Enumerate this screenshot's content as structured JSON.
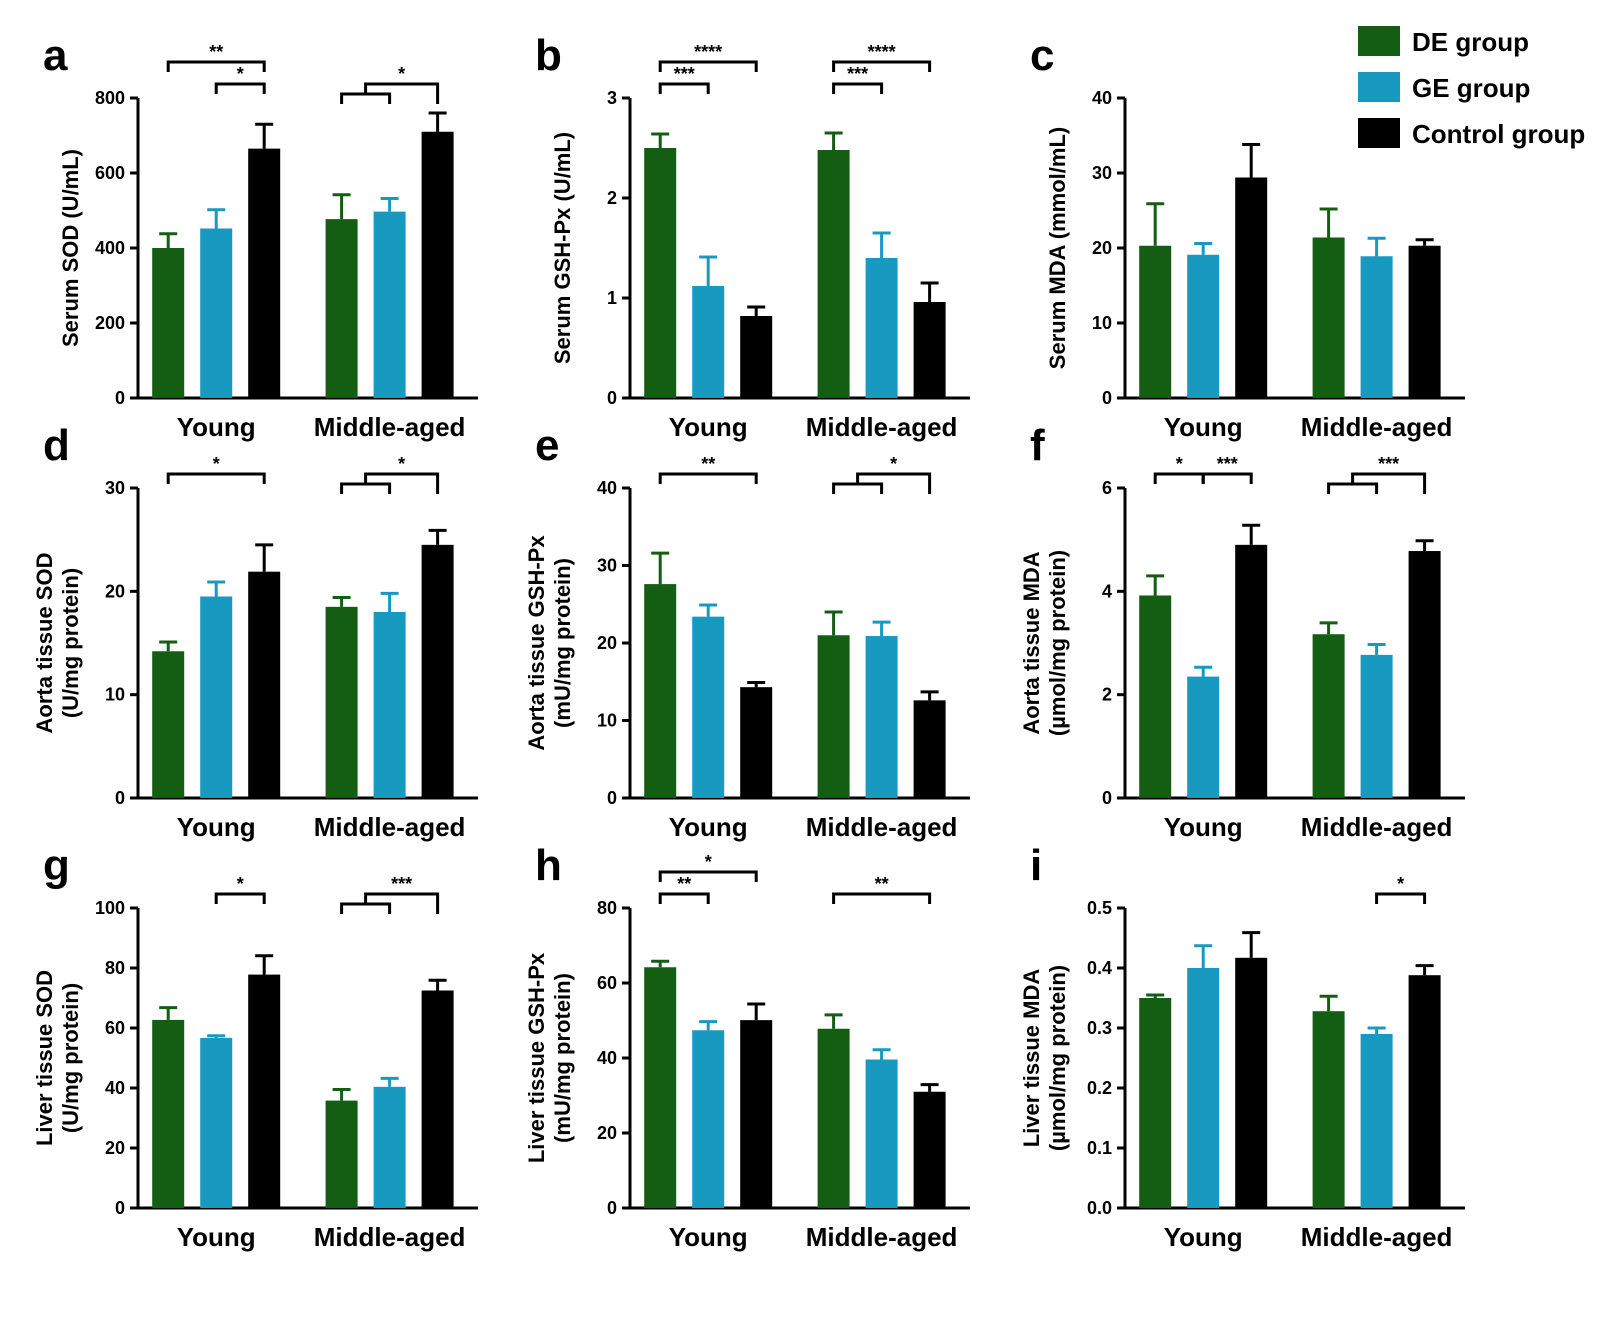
{
  "colors": {
    "DE": "#135e13",
    "GE": "#1899c0",
    "Control": "#000000"
  },
  "legend": {
    "items": [
      {
        "label": "DE group",
        "color": "#135e13"
      },
      {
        "label": "GE group",
        "color": "#1899c0"
      },
      {
        "label": "Control group",
        "color": "#000000"
      }
    ]
  },
  "chart_data": [
    {
      "letter": "a",
      "type": "bar",
      "ylabel": [
        "Serum SOD (U/mL)"
      ],
      "ylim": [
        0,
        800
      ],
      "yticks": [
        0,
        200,
        400,
        600,
        800
      ],
      "categories": [
        "Young",
        "Middle-aged"
      ],
      "series": [
        {
          "name": "DE group",
          "values": [
            400,
            477
          ],
          "errors": [
            38,
            65
          ]
        },
        {
          "name": "GE group",
          "values": [
            452,
            497
          ],
          "errors": [
            50,
            35
          ]
        },
        {
          "name": "Control group",
          "values": [
            665,
            710
          ],
          "errors": [
            65,
            50
          ]
        }
      ],
      "significance": [
        {
          "label": "**",
          "type": "pair",
          "group": 0,
          "from": 0,
          "to": 2,
          "level": 2
        },
        {
          "label": "*",
          "type": "pair",
          "group": 0,
          "from": 1,
          "to": 2,
          "level": 1
        },
        {
          "label": "*",
          "type": "combined",
          "group": 1,
          "level": 1
        }
      ]
    },
    {
      "letter": "b",
      "type": "bar",
      "ylabel": [
        "Serum GSH-Px (U/mL)"
      ],
      "ylim": [
        0,
        3
      ],
      "yticks": [
        0,
        1,
        2,
        3
      ],
      "categories": [
        "Young",
        "Middle-aged"
      ],
      "series": [
        {
          "name": "DE group",
          "values": [
            2.5,
            2.48
          ],
          "errors": [
            0.14,
            0.17
          ]
        },
        {
          "name": "GE group",
          "values": [
            1.12,
            1.4
          ],
          "errors": [
            0.29,
            0.25
          ]
        },
        {
          "name": "Control group",
          "values": [
            0.82,
            0.96
          ],
          "errors": [
            0.09,
            0.19
          ]
        }
      ],
      "significance": [
        {
          "label": "****",
          "type": "pair",
          "group": 0,
          "from": 0,
          "to": 2,
          "level": 2
        },
        {
          "label": "***",
          "type": "pair",
          "group": 0,
          "from": 0,
          "to": 1,
          "level": 1
        },
        {
          "label": "****",
          "type": "pair",
          "group": 1,
          "from": 0,
          "to": 2,
          "level": 2
        },
        {
          "label": "***",
          "type": "pair",
          "group": 1,
          "from": 0,
          "to": 1,
          "level": 1
        }
      ]
    },
    {
      "letter": "c",
      "type": "bar",
      "ylabel": [
        "Serum MDA (mmol/mL)"
      ],
      "ylim": [
        0,
        40
      ],
      "yticks": [
        0,
        10,
        20,
        30,
        40
      ],
      "categories": [
        "Young",
        "Middle-aged"
      ],
      "series": [
        {
          "name": "DE group",
          "values": [
            20.3,
            21.4
          ],
          "errors": [
            5.6,
            3.8
          ]
        },
        {
          "name": "GE group",
          "values": [
            19.1,
            18.9
          ],
          "errors": [
            1.5,
            2.4
          ]
        },
        {
          "name": "Control group",
          "values": [
            29.4,
            20.3
          ],
          "errors": [
            4.4,
            0.8
          ]
        }
      ],
      "significance": []
    },
    {
      "letter": "d",
      "type": "bar",
      "ylabel": [
        "Aorta tissue SOD",
        "(U/mg protein)"
      ],
      "ylim": [
        0,
        30
      ],
      "yticks": [
        0,
        10,
        20,
        30
      ],
      "categories": [
        "Young",
        "Middle-aged"
      ],
      "series": [
        {
          "name": "DE group",
          "values": [
            14.2,
            18.5
          ],
          "errors": [
            0.9,
            0.9
          ]
        },
        {
          "name": "GE group",
          "values": [
            19.5,
            18
          ],
          "errors": [
            1.4,
            1.8
          ]
        },
        {
          "name": "Control group",
          "values": [
            21.9,
            24.5
          ],
          "errors": [
            2.6,
            1.4
          ]
        }
      ],
      "significance": [
        {
          "label": "*",
          "type": "pair",
          "group": 0,
          "from": 0,
          "to": 2,
          "level": 1
        },
        {
          "label": "*",
          "type": "combined",
          "group": 1,
          "level": 1
        }
      ]
    },
    {
      "letter": "e",
      "type": "bar",
      "ylabel": [
        "Aorta tissue GSH-Px",
        "(mU/mg protein)"
      ],
      "ylim": [
        0,
        40
      ],
      "yticks": [
        0,
        10,
        20,
        30,
        40
      ],
      "categories": [
        "Young",
        "Middle-aged"
      ],
      "series": [
        {
          "name": "DE group",
          "values": [
            27.6,
            21
          ],
          "errors": [
            4,
            3
          ]
        },
        {
          "name": "GE group",
          "values": [
            23.4,
            20.9
          ],
          "errors": [
            1.5,
            1.8
          ]
        },
        {
          "name": "Control group",
          "values": [
            14.3,
            12.6
          ],
          "errors": [
            0.6,
            1.1
          ]
        }
      ],
      "significance": [
        {
          "label": "**",
          "type": "pair",
          "group": 0,
          "from": 0,
          "to": 2,
          "level": 1
        },
        {
          "label": "*",
          "type": "combined",
          "group": 1,
          "level": 1
        }
      ]
    },
    {
      "letter": "f",
      "type": "bar",
      "ylabel": [
        "Aorta tissue MDA",
        "(µmol/mg protein)"
      ],
      "ylim": [
        0,
        6
      ],
      "yticks": [
        0,
        2,
        4,
        6
      ],
      "categories": [
        "Young",
        "Middle-aged"
      ],
      "series": [
        {
          "name": "DE group",
          "values": [
            3.92,
            3.17
          ],
          "errors": [
            0.38,
            0.22
          ]
        },
        {
          "name": "GE group",
          "values": [
            2.35,
            2.77
          ],
          "errors": [
            0.18,
            0.2
          ]
        },
        {
          "name": "Control group",
          "values": [
            4.9,
            4.78
          ],
          "errors": [
            0.38,
            0.2
          ]
        }
      ],
      "significance": [
        {
          "label": "*",
          "type": "pair",
          "group": 0,
          "from": 0,
          "to": 1,
          "level": 1
        },
        {
          "label": "***",
          "type": "pair",
          "group": 0,
          "from": 1,
          "to": 2,
          "level": 1
        },
        {
          "label": "***",
          "type": "combined",
          "group": 1,
          "level": 1
        }
      ]
    },
    {
      "letter": "g",
      "type": "bar",
      "ylabel": [
        "Liver tissue SOD",
        "(U/mg protein)"
      ],
      "ylim": [
        0,
        100
      ],
      "yticks": [
        0,
        20,
        40,
        60,
        80,
        100
      ],
      "categories": [
        "Young",
        "Middle-aged"
      ],
      "series": [
        {
          "name": "DE group",
          "values": [
            62.7,
            35.8
          ],
          "errors": [
            4.1,
            3.7
          ]
        },
        {
          "name": "GE group",
          "values": [
            56.7,
            40.4
          ],
          "errors": [
            0.7,
            2.8
          ]
        },
        {
          "name": "Control group",
          "values": [
            77.8,
            72.5
          ],
          "errors": [
            6.3,
            3.4
          ]
        }
      ],
      "significance": [
        {
          "label": "*",
          "type": "pair",
          "group": 0,
          "from": 1,
          "to": 2,
          "level": 1
        },
        {
          "label": "***",
          "type": "combined",
          "group": 1,
          "level": 1
        }
      ]
    },
    {
      "letter": "h",
      "type": "bar",
      "ylabel": [
        "Liver tissue GSH-Px",
        "(mU/mg protein)"
      ],
      "ylim": [
        0,
        80
      ],
      "yticks": [
        0,
        20,
        40,
        60,
        80
      ],
      "categories": [
        "Young",
        "Middle-aged"
      ],
      "series": [
        {
          "name": "DE group",
          "values": [
            64.2,
            47.8
          ],
          "errors": [
            1.6,
            3.7
          ]
        },
        {
          "name": "GE group",
          "values": [
            47.4,
            39.6
          ],
          "errors": [
            2.3,
            2.6
          ]
        },
        {
          "name": "Control group",
          "values": [
            50.1,
            31
          ],
          "errors": [
            4.3,
            1.9
          ]
        }
      ],
      "significance": [
        {
          "label": "*",
          "type": "pair",
          "group": 0,
          "from": 0,
          "to": 2,
          "level": 2
        },
        {
          "label": "**",
          "type": "pair",
          "group": 0,
          "from": 0,
          "to": 1,
          "level": 1
        },
        {
          "label": "**",
          "type": "pair",
          "group": 1,
          "from": 0,
          "to": 2,
          "level": 1
        }
      ]
    },
    {
      "letter": "i",
      "type": "bar",
      "ylabel": [
        "Liver tissue MDA",
        "(µmol/mg protein)"
      ],
      "ylim": [
        0,
        0.5
      ],
      "yticks": [
        "0.0",
        "0.1",
        "0.2",
        "0.3",
        "0.4",
        "0.5"
      ],
      "categories": [
        "Young",
        "Middle-aged"
      ],
      "series": [
        {
          "name": "DE group",
          "values": [
            0.35,
            0.328
          ],
          "errors": [
            0.005,
            0.025
          ]
        },
        {
          "name": "GE group",
          "values": [
            0.4,
            0.29
          ],
          "errors": [
            0.037,
            0.01
          ]
        },
        {
          "name": "Control group",
          "values": [
            0.417,
            0.388
          ],
          "errors": [
            0.042,
            0.016
          ]
        }
      ],
      "significance": [
        {
          "label": "*",
          "type": "pair",
          "group": 1,
          "from": 1,
          "to": 2,
          "level": 1
        }
      ]
    }
  ]
}
